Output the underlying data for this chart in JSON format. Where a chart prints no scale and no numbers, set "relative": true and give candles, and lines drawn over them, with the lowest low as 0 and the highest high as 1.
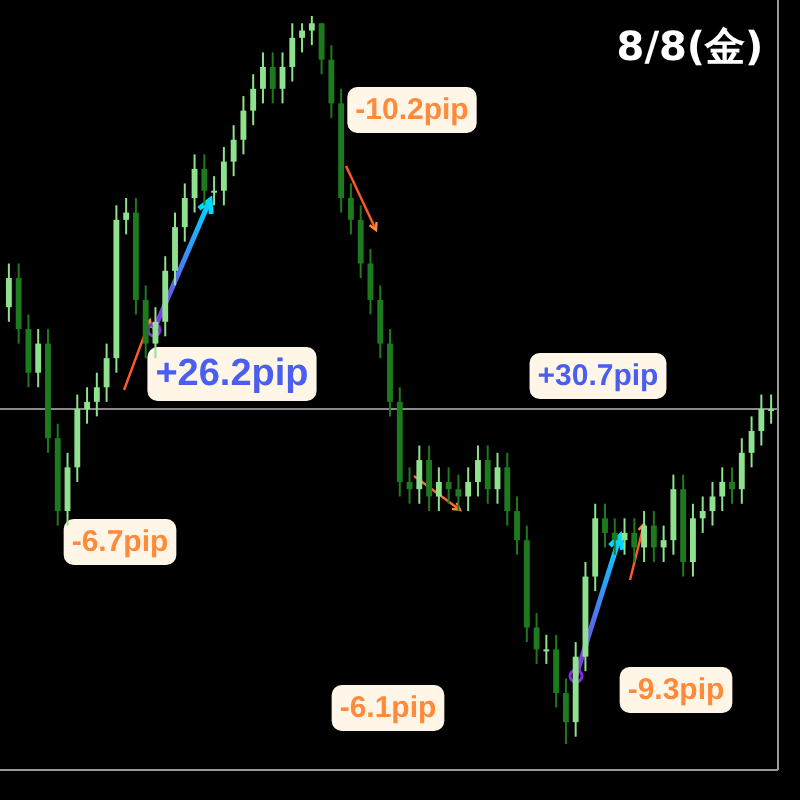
{
  "chart_data": {
    "type": "candlestick",
    "title": "8/8(金)",
    "relative": true,
    "categories": [
      null,
      null,
      null,
      null,
      null,
      null,
      null,
      null,
      null,
      null,
      null,
      null,
      null,
      null,
      null,
      null,
      null,
      null,
      null,
      null,
      null,
      null,
      null,
      null,
      null,
      null,
      null,
      null,
      null,
      null,
      null,
      null,
      null,
      null,
      null,
      null,
      null,
      null,
      null,
      null,
      null,
      null,
      null,
      null,
      null,
      null,
      null,
      null,
      null,
      null,
      null,
      null,
      null,
      null,
      null,
      null,
      null,
      null,
      null,
      null,
      null,
      null,
      null,
      null,
      null,
      null,
      null,
      null,
      null,
      null,
      null,
      null,
      null,
      null,
      null,
      null,
      null,
      null,
      null
    ],
    "ohlc": [
      [
        0.6,
        0.66,
        0.58,
        0.64
      ],
      [
        0.64,
        0.66,
        0.55,
        0.57
      ],
      [
        0.57,
        0.59,
        0.49,
        0.51
      ],
      [
        0.51,
        0.57,
        0.49,
        0.55
      ],
      [
        0.55,
        0.57,
        0.4,
        0.42
      ],
      [
        0.42,
        0.44,
        0.3,
        0.32
      ],
      [
        0.32,
        0.4,
        0.3,
        0.38
      ],
      [
        0.38,
        0.48,
        0.36,
        0.46
      ],
      [
        0.46,
        0.49,
        0.44,
        0.47
      ],
      [
        0.47,
        0.51,
        0.45,
        0.49
      ],
      [
        0.49,
        0.55,
        0.47,
        0.53
      ],
      [
        0.53,
        0.74,
        0.51,
        0.72
      ],
      [
        0.72,
        0.75,
        0.7,
        0.73
      ],
      [
        0.73,
        0.75,
        0.59,
        0.61
      ],
      [
        0.61,
        0.63,
        0.53,
        0.55
      ],
      [
        0.55,
        0.6,
        0.53,
        0.58
      ],
      [
        0.58,
        0.67,
        0.56,
        0.65
      ],
      [
        0.65,
        0.73,
        0.63,
        0.71
      ],
      [
        0.71,
        0.77,
        0.69,
        0.75
      ],
      [
        0.75,
        0.81,
        0.73,
        0.79
      ],
      [
        0.79,
        0.81,
        0.74,
        0.76
      ],
      [
        0.76,
        0.78,
        0.74,
        0.76
      ],
      [
        0.76,
        0.82,
        0.74,
        0.8
      ],
      [
        0.8,
        0.85,
        0.78,
        0.83
      ],
      [
        0.83,
        0.89,
        0.81,
        0.87
      ],
      [
        0.87,
        0.92,
        0.85,
        0.9
      ],
      [
        0.9,
        0.95,
        0.88,
        0.93
      ],
      [
        0.93,
        0.95,
        0.88,
        0.9
      ],
      [
        0.9,
        0.95,
        0.88,
        0.93
      ],
      [
        0.93,
        0.99,
        0.91,
        0.97
      ],
      [
        0.97,
        0.99,
        0.95,
        0.98
      ],
      [
        0.98,
        1.0,
        0.96,
        0.99
      ],
      [
        0.99,
        0.99,
        0.92,
        0.94
      ],
      [
        0.94,
        0.96,
        0.86,
        0.88
      ],
      [
        0.88,
        0.9,
        0.73,
        0.75
      ],
      [
        0.75,
        0.77,
        0.7,
        0.72
      ],
      [
        0.72,
        0.74,
        0.64,
        0.66
      ],
      [
        0.66,
        0.68,
        0.59,
        0.61
      ],
      [
        0.61,
        0.63,
        0.53,
        0.55
      ],
      [
        0.55,
        0.57,
        0.45,
        0.47
      ],
      [
        0.47,
        0.49,
        0.34,
        0.36
      ],
      [
        0.36,
        0.38,
        0.33,
        0.35
      ],
      [
        0.35,
        0.41,
        0.33,
        0.39
      ],
      [
        0.39,
        0.41,
        0.32,
        0.34
      ],
      [
        0.34,
        0.38,
        0.32,
        0.36
      ],
      [
        0.36,
        0.38,
        0.33,
        0.35
      ],
      [
        0.35,
        0.37,
        0.32,
        0.34
      ],
      [
        0.34,
        0.38,
        0.32,
        0.36
      ],
      [
        0.36,
        0.41,
        0.34,
        0.39
      ],
      [
        0.39,
        0.41,
        0.33,
        0.35
      ],
      [
        0.35,
        0.4,
        0.33,
        0.38
      ],
      [
        0.38,
        0.4,
        0.3,
        0.32
      ],
      [
        0.32,
        0.34,
        0.26,
        0.28
      ],
      [
        0.28,
        0.3,
        0.14,
        0.16
      ],
      [
        0.16,
        0.18,
        0.11,
        0.13
      ],
      [
        0.13,
        0.15,
        0.11,
        0.13
      ],
      [
        0.13,
        0.15,
        0.05,
        0.07
      ],
      [
        0.07,
        0.09,
        0.0,
        0.03
      ],
      [
        0.03,
        0.14,
        0.01,
        0.12
      ],
      [
        0.12,
        0.25,
        0.1,
        0.23
      ],
      [
        0.23,
        0.33,
        0.21,
        0.31
      ],
      [
        0.31,
        0.33,
        0.27,
        0.29
      ],
      [
        0.29,
        0.31,
        0.26,
        0.28
      ],
      [
        0.28,
        0.31,
        0.26,
        0.29
      ],
      [
        0.29,
        0.31,
        0.25,
        0.27
      ],
      [
        0.27,
        0.32,
        0.25,
        0.3
      ],
      [
        0.3,
        0.32,
        0.25,
        0.27
      ],
      [
        0.27,
        0.3,
        0.25,
        0.28
      ],
      [
        0.28,
        0.37,
        0.26,
        0.35
      ],
      [
        0.35,
        0.37,
        0.23,
        0.25
      ],
      [
        0.25,
        0.33,
        0.23,
        0.31
      ],
      [
        0.31,
        0.34,
        0.29,
        0.32
      ],
      [
        0.32,
        0.36,
        0.3,
        0.34
      ],
      [
        0.34,
        0.38,
        0.32,
        0.36
      ],
      [
        0.36,
        0.38,
        0.33,
        0.35
      ],
      [
        0.35,
        0.42,
        0.33,
        0.4
      ],
      [
        0.4,
        0.45,
        0.38,
        0.43
      ],
      [
        0.43,
        0.48,
        0.41,
        0.46
      ],
      [
        0.46,
        0.48,
        0.44,
        0.46
      ]
    ],
    "ref_lines": [
      {
        "axis": "y",
        "value": 0.46,
        "color": "#8a8a8a"
      }
    ],
    "annotations": [
      "-10.2pip",
      "+26.2pip",
      "+30.7pip",
      "-6.7pip",
      "-6.1pip",
      "-9.3pip"
    ]
  }
}
